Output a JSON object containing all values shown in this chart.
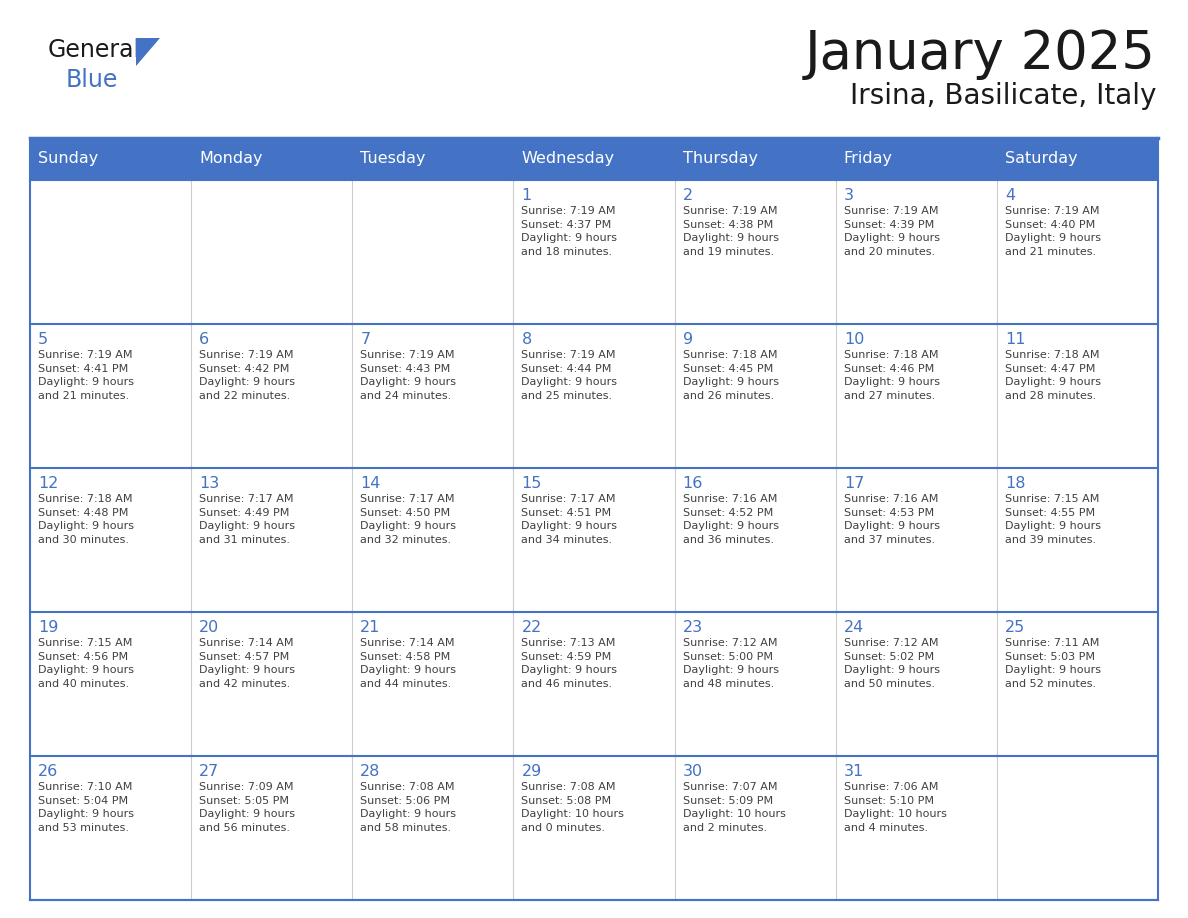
{
  "title": "January 2025",
  "subtitle": "Irsina, Basilicate, Italy",
  "header_color": "#4472C4",
  "header_text_color": "#FFFFFF",
  "cell_bg_color": "#FFFFFF",
  "border_color": "#4472C4",
  "text_color": "#404040",
  "day_num_color": "#4472C4",
  "days_of_week": [
    "Sunday",
    "Monday",
    "Tuesday",
    "Wednesday",
    "Thursday",
    "Friday",
    "Saturday"
  ],
  "calendar_data": [
    [
      {
        "day": "",
        "info": ""
      },
      {
        "day": "",
        "info": ""
      },
      {
        "day": "",
        "info": ""
      },
      {
        "day": "1",
        "info": "Sunrise: 7:19 AM\nSunset: 4:37 PM\nDaylight: 9 hours\nand 18 minutes."
      },
      {
        "day": "2",
        "info": "Sunrise: 7:19 AM\nSunset: 4:38 PM\nDaylight: 9 hours\nand 19 minutes."
      },
      {
        "day": "3",
        "info": "Sunrise: 7:19 AM\nSunset: 4:39 PM\nDaylight: 9 hours\nand 20 minutes."
      },
      {
        "day": "4",
        "info": "Sunrise: 7:19 AM\nSunset: 4:40 PM\nDaylight: 9 hours\nand 21 minutes."
      }
    ],
    [
      {
        "day": "5",
        "info": "Sunrise: 7:19 AM\nSunset: 4:41 PM\nDaylight: 9 hours\nand 21 minutes."
      },
      {
        "day": "6",
        "info": "Sunrise: 7:19 AM\nSunset: 4:42 PM\nDaylight: 9 hours\nand 22 minutes."
      },
      {
        "day": "7",
        "info": "Sunrise: 7:19 AM\nSunset: 4:43 PM\nDaylight: 9 hours\nand 24 minutes."
      },
      {
        "day": "8",
        "info": "Sunrise: 7:19 AM\nSunset: 4:44 PM\nDaylight: 9 hours\nand 25 minutes."
      },
      {
        "day": "9",
        "info": "Sunrise: 7:18 AM\nSunset: 4:45 PM\nDaylight: 9 hours\nand 26 minutes."
      },
      {
        "day": "10",
        "info": "Sunrise: 7:18 AM\nSunset: 4:46 PM\nDaylight: 9 hours\nand 27 minutes."
      },
      {
        "day": "11",
        "info": "Sunrise: 7:18 AM\nSunset: 4:47 PM\nDaylight: 9 hours\nand 28 minutes."
      }
    ],
    [
      {
        "day": "12",
        "info": "Sunrise: 7:18 AM\nSunset: 4:48 PM\nDaylight: 9 hours\nand 30 minutes."
      },
      {
        "day": "13",
        "info": "Sunrise: 7:17 AM\nSunset: 4:49 PM\nDaylight: 9 hours\nand 31 minutes."
      },
      {
        "day": "14",
        "info": "Sunrise: 7:17 AM\nSunset: 4:50 PM\nDaylight: 9 hours\nand 32 minutes."
      },
      {
        "day": "15",
        "info": "Sunrise: 7:17 AM\nSunset: 4:51 PM\nDaylight: 9 hours\nand 34 minutes."
      },
      {
        "day": "16",
        "info": "Sunrise: 7:16 AM\nSunset: 4:52 PM\nDaylight: 9 hours\nand 36 minutes."
      },
      {
        "day": "17",
        "info": "Sunrise: 7:16 AM\nSunset: 4:53 PM\nDaylight: 9 hours\nand 37 minutes."
      },
      {
        "day": "18",
        "info": "Sunrise: 7:15 AM\nSunset: 4:55 PM\nDaylight: 9 hours\nand 39 minutes."
      }
    ],
    [
      {
        "day": "19",
        "info": "Sunrise: 7:15 AM\nSunset: 4:56 PM\nDaylight: 9 hours\nand 40 minutes."
      },
      {
        "day": "20",
        "info": "Sunrise: 7:14 AM\nSunset: 4:57 PM\nDaylight: 9 hours\nand 42 minutes."
      },
      {
        "day": "21",
        "info": "Sunrise: 7:14 AM\nSunset: 4:58 PM\nDaylight: 9 hours\nand 44 minutes."
      },
      {
        "day": "22",
        "info": "Sunrise: 7:13 AM\nSunset: 4:59 PM\nDaylight: 9 hours\nand 46 minutes."
      },
      {
        "day": "23",
        "info": "Sunrise: 7:12 AM\nSunset: 5:00 PM\nDaylight: 9 hours\nand 48 minutes."
      },
      {
        "day": "24",
        "info": "Sunrise: 7:12 AM\nSunset: 5:02 PM\nDaylight: 9 hours\nand 50 minutes."
      },
      {
        "day": "25",
        "info": "Sunrise: 7:11 AM\nSunset: 5:03 PM\nDaylight: 9 hours\nand 52 minutes."
      }
    ],
    [
      {
        "day": "26",
        "info": "Sunrise: 7:10 AM\nSunset: 5:04 PM\nDaylight: 9 hours\nand 53 minutes."
      },
      {
        "day": "27",
        "info": "Sunrise: 7:09 AM\nSunset: 5:05 PM\nDaylight: 9 hours\nand 56 minutes."
      },
      {
        "day": "28",
        "info": "Sunrise: 7:08 AM\nSunset: 5:06 PM\nDaylight: 9 hours\nand 58 minutes."
      },
      {
        "day": "29",
        "info": "Sunrise: 7:08 AM\nSunset: 5:08 PM\nDaylight: 10 hours\nand 0 minutes."
      },
      {
        "day": "30",
        "info": "Sunrise: 7:07 AM\nSunset: 5:09 PM\nDaylight: 10 hours\nand 2 minutes."
      },
      {
        "day": "31",
        "info": "Sunrise: 7:06 AM\nSunset: 5:10 PM\nDaylight: 10 hours\nand 4 minutes."
      },
      {
        "day": "",
        "info": ""
      }
    ]
  ],
  "figure_bg": "#FFFFFF",
  "logo_general_color": "#1a1a1a",
  "logo_blue_color": "#4472C4",
  "logo_triangle_color": "#4472C4"
}
